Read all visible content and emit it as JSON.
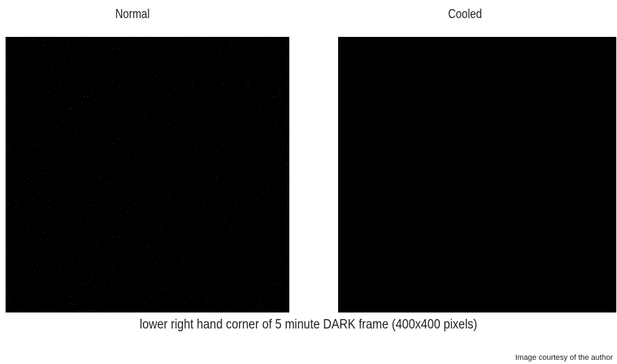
{
  "panels": [
    {
      "label": "Normal"
    },
    {
      "label": "Cooled"
    }
  ],
  "caption": "lower right hand corner of 5 minute DARK frame (400x400 pixels)",
  "credit": "Image courtesy of the author"
}
